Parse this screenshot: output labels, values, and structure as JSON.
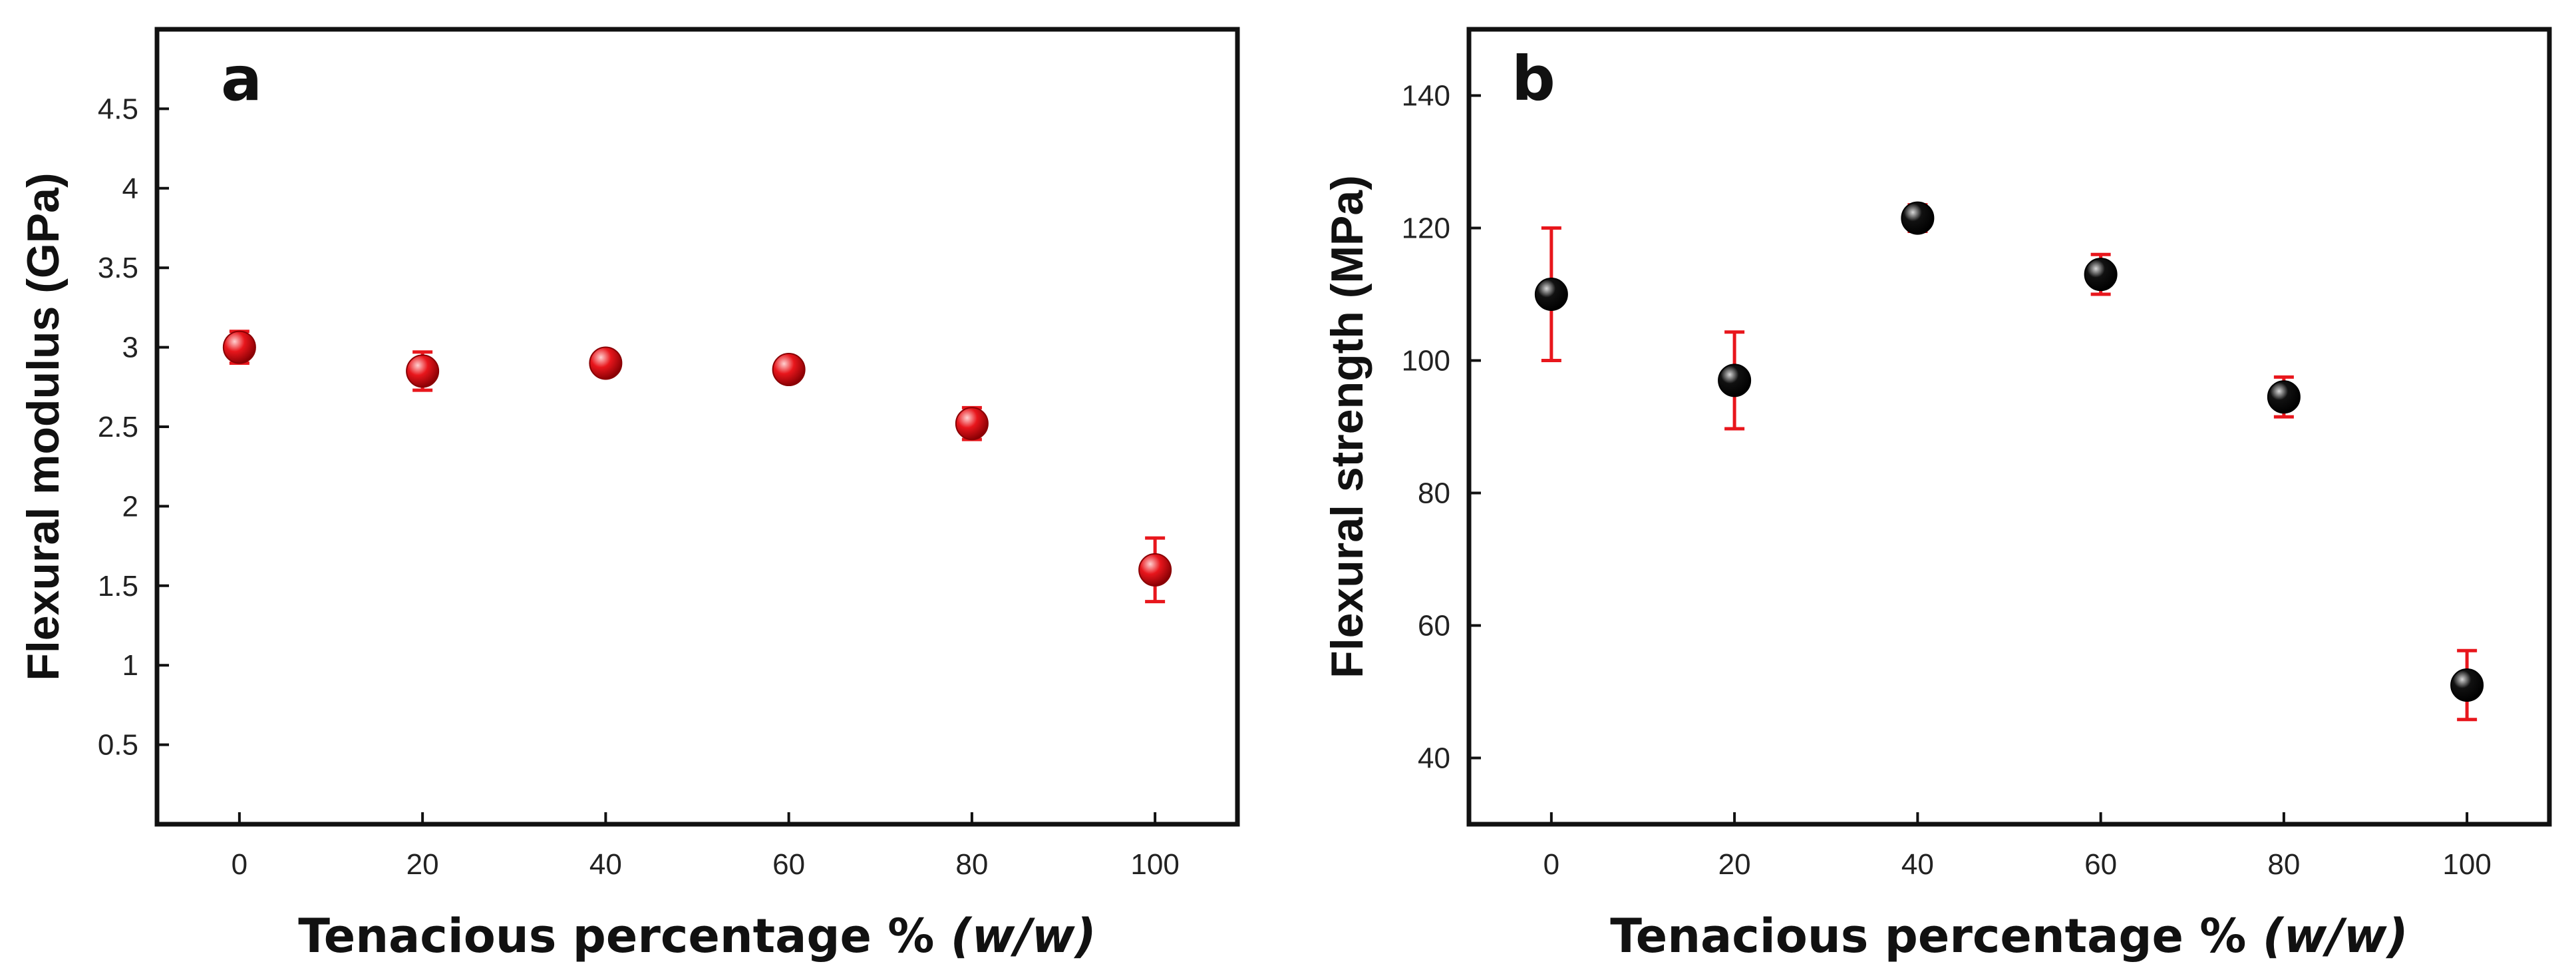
{
  "chart_data": [
    {
      "type": "scatter",
      "panel_label": "a",
      "xlabel_main": "Tenacious percentage % ",
      "xlabel_italic": "(w/w)",
      "ylabel": "Flexural modulus (GPa)",
      "xlim": [
        -9,
        109
      ],
      "ylim": [
        0,
        5
      ],
      "xticks": [
        0,
        20,
        40,
        60,
        80,
        100
      ],
      "xtick_labels": [
        "0",
        "20",
        "40",
        "60",
        "80",
        "100"
      ],
      "yticks": [
        0.5,
        1,
        1.5,
        2,
        2.5,
        3,
        3.5,
        4,
        4.5
      ],
      "ytick_labels": [
        "0.5",
        "1",
        "1.5",
        "2",
        "2.5",
        "3",
        "3.5",
        "4",
        "4.5"
      ],
      "marker_color": "#e8161c",
      "marker_highlight": "#ffd0d0",
      "marker_shadow": "#8a0004",
      "error_color": "#e8161c",
      "series": [
        {
          "name": "Flexural modulus",
          "x": [
            0,
            20,
            40,
            60,
            80,
            100
          ],
          "y": [
            3.0,
            2.85,
            2.9,
            2.86,
            2.52,
            1.6
          ],
          "err": [
            0.1,
            0.12,
            0.06,
            0.07,
            0.1,
            0.2
          ]
        }
      ]
    },
    {
      "type": "scatter",
      "panel_label": "b",
      "xlabel_main": "Tenacious percentage % ",
      "xlabel_italic": "(w/w)",
      "ylabel": "Flexural strength (MPa)",
      "xlim": [
        -9,
        109
      ],
      "ylim": [
        30,
        150
      ],
      "xticks": [
        0,
        20,
        40,
        60,
        80,
        100
      ],
      "xtick_labels": [
        "0",
        "20",
        "40",
        "60",
        "80",
        "100"
      ],
      "yticks": [
        40,
        60,
        80,
        100,
        120,
        140
      ],
      "ytick_labels": [
        "40",
        "60",
        "80",
        "100",
        "120",
        "140"
      ],
      "marker_color": "#111111",
      "marker_highlight": "#d8d8d8",
      "marker_shadow": "#000000",
      "error_color": "#e8161c",
      "series": [
        {
          "name": "Flexural strength",
          "x": [
            0,
            20,
            40,
            60,
            80,
            100
          ],
          "y": [
            110,
            97,
            121.5,
            113,
            94.5,
            51
          ],
          "err": [
            10,
            7.3,
            2,
            3,
            3,
            5.2
          ]
        }
      ]
    }
  ]
}
